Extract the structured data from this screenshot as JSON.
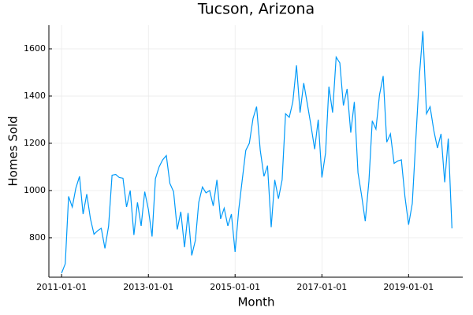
{
  "chart_data": {
    "type": "line",
    "title": "Tucson, Arizona",
    "x_label": "Month",
    "y_label": "Homes Sold",
    "x": [
      "2011-01-01",
      "2011-02-01",
      "2011-03-01",
      "2011-04-01",
      "2011-05-01",
      "2011-06-01",
      "2011-07-01",
      "2011-08-01",
      "2011-09-01",
      "2011-10-01",
      "2011-11-01",
      "2011-12-01",
      "2012-01-01",
      "2012-02-01",
      "2012-03-01",
      "2012-04-01",
      "2012-05-01",
      "2012-06-01",
      "2012-07-01",
      "2012-08-01",
      "2012-09-01",
      "2012-10-01",
      "2012-11-01",
      "2012-12-01",
      "2013-01-01",
      "2013-02-01",
      "2013-03-01",
      "2013-04-01",
      "2013-05-01",
      "2013-06-01",
      "2013-07-01",
      "2013-08-01",
      "2013-09-01",
      "2013-10-01",
      "2013-11-01",
      "2013-12-01",
      "2014-01-01",
      "2014-02-01",
      "2014-03-01",
      "2014-04-01",
      "2014-05-01",
      "2014-06-01",
      "2014-07-01",
      "2014-08-01",
      "2014-09-01",
      "2014-10-01",
      "2014-11-01",
      "2014-12-01",
      "2015-01-01",
      "2015-02-01",
      "2015-03-01",
      "2015-04-01",
      "2015-05-01",
      "2015-06-01",
      "2015-07-01",
      "2015-08-01",
      "2015-09-01",
      "2015-10-01",
      "2015-11-01",
      "2015-12-01",
      "2016-01-01",
      "2016-02-01",
      "2016-03-01",
      "2016-04-01",
      "2016-05-01",
      "2016-06-01",
      "2016-07-01",
      "2016-08-01",
      "2016-09-01",
      "2016-10-01",
      "2016-11-01",
      "2016-12-01",
      "2017-01-01",
      "2017-02-01",
      "2017-03-01",
      "2017-04-01",
      "2017-05-01",
      "2017-06-01",
      "2017-07-01",
      "2017-08-01",
      "2017-09-01",
      "2017-10-01",
      "2017-11-01",
      "2017-12-01",
      "2018-01-01",
      "2018-02-01",
      "2018-03-01",
      "2018-04-01",
      "2018-05-01",
      "2018-06-01",
      "2018-07-01",
      "2018-08-01",
      "2018-09-01",
      "2018-10-01",
      "2018-11-01",
      "2018-12-01",
      "2019-01-01",
      "2019-02-01",
      "2019-03-01",
      "2019-04-01",
      "2019-05-01",
      "2019-06-01",
      "2019-07-01",
      "2019-08-01",
      "2019-09-01",
      "2019-10-01",
      "2019-11-01",
      "2019-12-01",
      "2020-01-01"
    ],
    "series": [
      {
        "color": "#009af9",
        "values": [
          650,
          690,
          975,
          930,
          1010,
          1060,
          900,
          985,
          880,
          815,
          830,
          840,
          755,
          850,
          1065,
          1068,
          1055,
          1052,
          930,
          1000,
          812,
          950,
          850,
          995,
          920,
          805,
          1050,
          1100,
          1130,
          1148,
          1030,
          995,
          835,
          910,
          760,
          905,
          725,
          790,
          950,
          1015,
          990,
          1000,
          935,
          1045,
          880,
          925,
          850,
          900,
          740,
          920,
          1040,
          1170,
          1200,
          1305,
          1355,
          1170,
          1060,
          1105,
          845,
          1045,
          965,
          1045,
          1325,
          1310,
          1375,
          1530,
          1330,
          1455,
          1365,
          1275,
          1175,
          1300,
          1055,
          1160,
          1440,
          1330,
          1565,
          1540,
          1360,
          1430,
          1245,
          1375,
          1075,
          980,
          870,
          1040,
          1295,
          1260,
          1405,
          1485,
          1205,
          1240,
          1115,
          1125,
          1130,
          975,
          855,
          945,
          1200,
          1480,
          1675,
          1325,
          1355,
          1255,
          1180,
          1240,
          1035,
          1220,
          840
        ]
      }
    ],
    "xlim": [
      "2010-09-16",
      "2020-04-01"
    ],
    "xticks": [
      "2011-01-01",
      "2013-01-01",
      "2015-01-01",
      "2017-01-01",
      "2019-01-01"
    ],
    "ylim": [
      633,
      1700
    ],
    "yticks": [
      800,
      1000,
      1200,
      1400,
      1600
    ],
    "grid": true
  }
}
